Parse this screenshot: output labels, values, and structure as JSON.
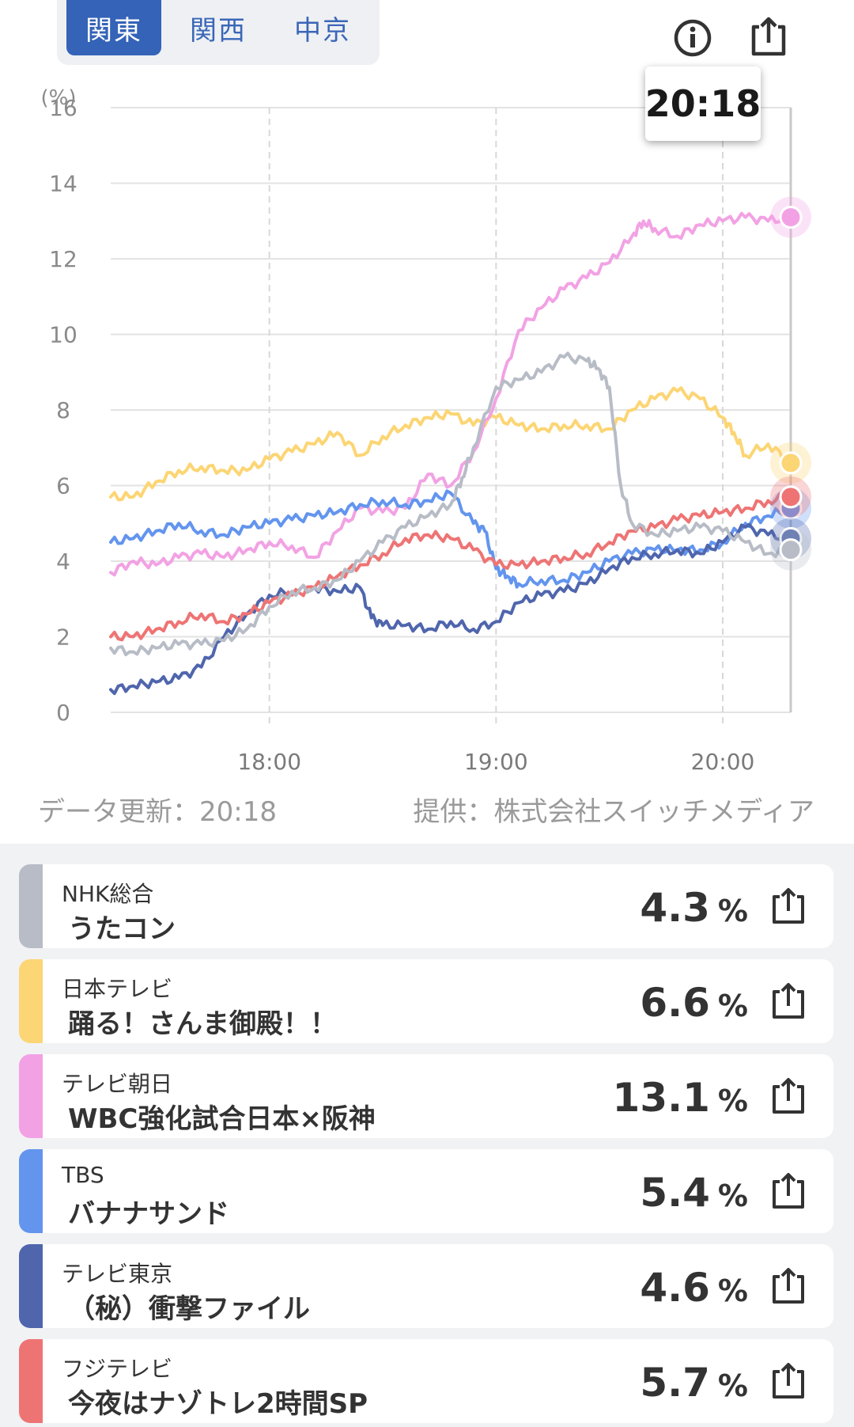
{
  "region_tabs": [
    "関東",
    "関西",
    "中京"
  ],
  "tooltip_time": "20:18",
  "icons": {
    "info": "info-icon",
    "share": "share-icon"
  },
  "footer": {
    "updated": "データ更新：20:18",
    "provider": "提供：株式会社スイッチメディア"
  },
  "colors": {
    "nhk": "#b7bcc6",
    "ntv": "#fcd574",
    "asahi": "#f2a2e4",
    "tbs": "#6395ee",
    "tx": "#4f66ad",
    "fuji": "#ee7474",
    "active_tab": "#3463b8"
  },
  "channels": [
    {
      "channel": "NHK総合",
      "program": "うたコン",
      "rating": "4.3",
      "unit": "%",
      "color": "#b7bcc6"
    },
    {
      "channel": "日本テレビ",
      "program": "踊る！さんま御殿！！",
      "rating": "6.6",
      "unit": "%",
      "color": "#fcd574"
    },
    {
      "channel": "テレビ朝日",
      "program": "WBC強化試合日本×阪神",
      "rating": "13.1",
      "unit": "%",
      "color": "#f2a2e4"
    },
    {
      "channel": "TBS",
      "program": "バナナサンド",
      "rating": "5.4",
      "unit": "%",
      "color": "#6395ee"
    },
    {
      "channel": "テレビ東京",
      "program": "（秘）衝撃ファイル",
      "rating": "4.6",
      "unit": "%",
      "color": "#4f66ad"
    },
    {
      "channel": "フジテレビ",
      "program": "今夜はナゾトレ2時間SP",
      "rating": "5.7",
      "unit": "%",
      "color": "#ee7474"
    }
  ],
  "chart_data": {
    "type": "line",
    "title": "",
    "ylabel": "(%)",
    "xlabel": "",
    "ylim": [
      0,
      16
    ],
    "yticks": [
      "0",
      "2",
      "4",
      "6",
      "8",
      "10",
      "12",
      "14",
      "16"
    ],
    "xlim": [
      17.3,
      20.3
    ],
    "xticks": [
      "18:00",
      "19:00",
      "20:00"
    ],
    "xtick_values": [
      18,
      19,
      20
    ],
    "cursor_x": 20.3,
    "series": [
      {
        "name": "日本テレビ",
        "color": "#fcd574",
        "x": [
          17.3,
          17.4,
          17.5,
          17.6,
          17.7,
          17.8,
          17.9,
          18.0,
          18.1,
          18.2,
          18.3,
          18.4,
          18.5,
          18.6,
          18.7,
          18.8,
          18.9,
          19.0,
          19.1,
          19.2,
          19.3,
          19.4,
          19.5,
          19.6,
          19.7,
          19.8,
          19.9,
          20.0,
          20.05,
          20.1,
          20.2,
          20.3
        ],
        "y": [
          5.7,
          5.7,
          6.1,
          6.4,
          6.5,
          6.4,
          6.4,
          6.7,
          6.9,
          7.1,
          7.4,
          6.8,
          7.3,
          7.6,
          7.8,
          7.9,
          7.6,
          7.8,
          7.6,
          7.5,
          7.6,
          7.6,
          7.5,
          8.0,
          8.3,
          8.5,
          8.3,
          7.8,
          7.4,
          6.8,
          7.1,
          6.6
        ]
      },
      {
        "name": "テレビ朝日",
        "color": "#f2a2e4",
        "x": [
          17.3,
          17.4,
          17.5,
          17.6,
          17.7,
          17.8,
          17.9,
          18.0,
          18.1,
          18.2,
          18.3,
          18.4,
          18.5,
          18.6,
          18.7,
          18.8,
          18.9,
          19.0,
          19.1,
          19.2,
          19.3,
          19.4,
          19.5,
          19.6,
          19.65,
          19.7,
          19.8,
          19.9,
          20.0,
          20.1,
          20.2,
          20.3
        ],
        "y": [
          3.7,
          4.0,
          3.9,
          4.1,
          4.2,
          4.1,
          4.3,
          4.5,
          4.4,
          4.1,
          4.8,
          5.4,
          5.3,
          5.4,
          6.3,
          6.0,
          6.9,
          8.3,
          10.1,
          10.7,
          11.2,
          11.5,
          11.9,
          12.6,
          13.0,
          12.8,
          12.6,
          12.9,
          13.0,
          13.1,
          13.0,
          13.1
        ]
      },
      {
        "name": "TBS",
        "color": "#6395ee",
        "x": [
          17.3,
          17.4,
          17.5,
          17.6,
          17.7,
          17.8,
          17.9,
          18.0,
          18.1,
          18.2,
          18.3,
          18.4,
          18.5,
          18.6,
          18.7,
          18.8,
          18.9,
          18.95,
          19.0,
          19.05,
          19.1,
          19.2,
          19.3,
          19.4,
          19.5,
          19.6,
          19.7,
          19.8,
          19.9,
          20.0,
          20.1,
          20.2,
          20.3
        ],
        "y": [
          4.5,
          4.6,
          4.8,
          5.0,
          4.8,
          4.7,
          4.9,
          5.0,
          5.1,
          5.2,
          5.3,
          5.5,
          5.6,
          5.5,
          5.6,
          5.8,
          5.0,
          4.8,
          3.8,
          3.6,
          3.4,
          3.5,
          3.5,
          3.7,
          4.0,
          4.2,
          4.3,
          4.3,
          4.3,
          4.5,
          5.0,
          5.2,
          5.4
        ]
      },
      {
        "name": "テレビ東京",
        "color": "#4f66ad",
        "x": [
          17.3,
          17.4,
          17.5,
          17.6,
          17.7,
          17.8,
          17.9,
          18.0,
          18.1,
          18.2,
          18.3,
          18.4,
          18.45,
          18.5,
          18.6,
          18.7,
          18.8,
          18.9,
          19.0,
          19.1,
          19.2,
          19.3,
          19.4,
          19.5,
          19.6,
          19.7,
          19.8,
          19.9,
          20.0,
          20.1,
          20.2,
          20.3
        ],
        "y": [
          0.6,
          0.7,
          0.8,
          0.9,
          1.2,
          2.0,
          2.6,
          3.1,
          3.2,
          3.3,
          3.2,
          3.3,
          2.5,
          2.3,
          2.3,
          2.2,
          2.4,
          2.2,
          2.4,
          2.9,
          3.1,
          3.2,
          3.4,
          3.8,
          4.1,
          4.2,
          4.3,
          4.2,
          4.5,
          4.9,
          4.7,
          4.6
        ]
      },
      {
        "name": "フジテレビ",
        "color": "#ee7474",
        "x": [
          17.3,
          17.4,
          17.5,
          17.6,
          17.7,
          17.8,
          17.9,
          18.0,
          18.1,
          18.2,
          18.3,
          18.4,
          18.5,
          18.6,
          18.7,
          18.8,
          18.9,
          19.0,
          19.1,
          19.2,
          19.3,
          19.4,
          19.5,
          19.6,
          19.7,
          19.8,
          19.9,
          20.0,
          20.1,
          20.2,
          20.3
        ],
        "y": [
          2.0,
          2.0,
          2.2,
          2.4,
          2.6,
          2.4,
          2.6,
          2.9,
          3.1,
          3.3,
          3.6,
          3.9,
          4.2,
          4.6,
          4.7,
          4.6,
          4.3,
          3.9,
          3.9,
          4.0,
          4.1,
          4.2,
          4.5,
          4.8,
          4.9,
          5.1,
          5.2,
          5.3,
          5.4,
          5.6,
          5.7
        ]
      },
      {
        "name": "NHK総合",
        "color": "#b7bcc6",
        "x": [
          17.3,
          17.4,
          17.5,
          17.6,
          17.7,
          17.8,
          17.9,
          18.0,
          18.1,
          18.2,
          18.3,
          18.4,
          18.5,
          18.6,
          18.7,
          18.8,
          18.85,
          18.9,
          19.0,
          19.1,
          19.2,
          19.3,
          19.4,
          19.45,
          19.5,
          19.55,
          19.6,
          19.7,
          19.8,
          19.9,
          20.0,
          20.1,
          20.2,
          20.3
        ],
        "y": [
          1.7,
          1.6,
          1.7,
          1.8,
          1.8,
          1.9,
          2.2,
          2.8,
          3.2,
          3.3,
          3.5,
          4.0,
          4.5,
          4.9,
          5.2,
          5.5,
          6.2,
          7.0,
          8.6,
          8.8,
          9.0,
          9.4,
          9.3,
          9.1,
          8.6,
          6.0,
          5.0,
          4.7,
          4.8,
          4.9,
          4.8,
          4.5,
          4.2,
          4.3
        ]
      }
    ]
  }
}
